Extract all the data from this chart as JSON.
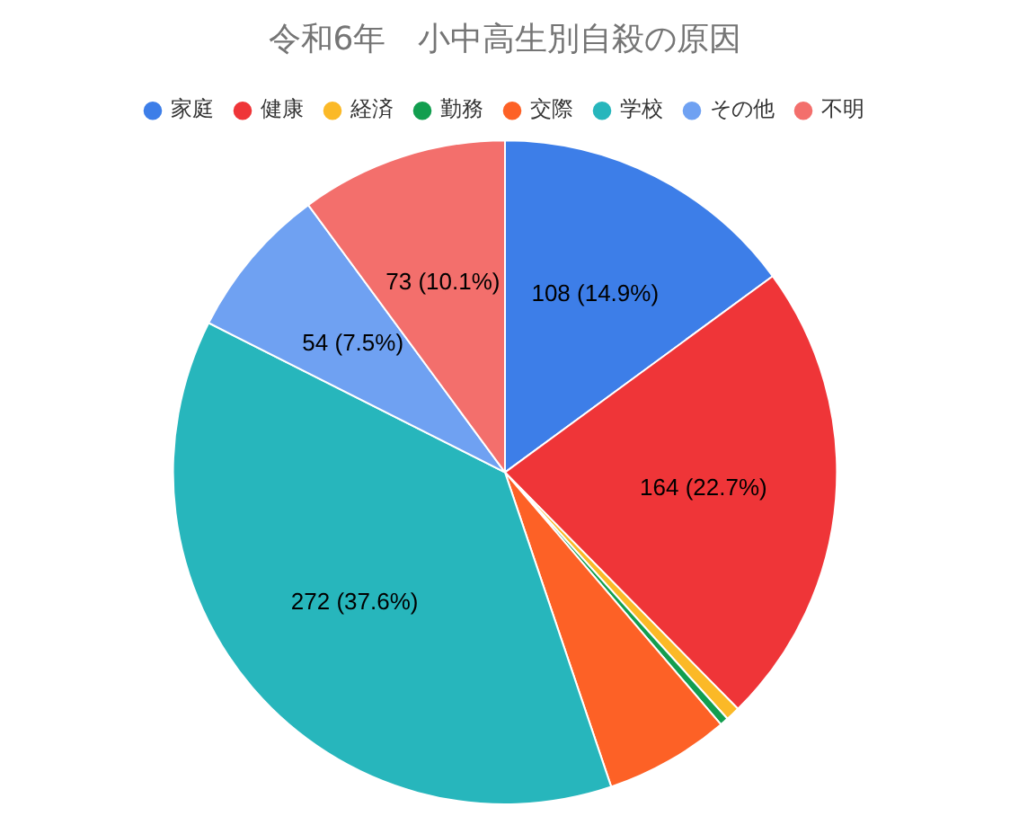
{
  "chart_data": {
    "type": "pie",
    "title": "令和6年　小中高生別自殺の原因",
    "categories": [
      "家庭",
      "健康",
      "経済",
      "勤務",
      "交際",
      "学校",
      "その他",
      "不明"
    ],
    "values": [
      108,
      164,
      5,
      3,
      44,
      272,
      54,
      73
    ],
    "colors": [
      "#3d7ee8",
      "#ef3538",
      "#fbb927",
      "#129e4f",
      "#fd6126",
      "#27b6bc",
      "#6fa1f2",
      "#f36f6c"
    ],
    "value_labels": [
      "108 (14.9%)",
      "164 (22.7%)",
      null,
      null,
      null,
      "272 (37.6%)",
      "54 (7.5%)",
      "73 (10.1%)"
    ],
    "legend": "top"
  }
}
